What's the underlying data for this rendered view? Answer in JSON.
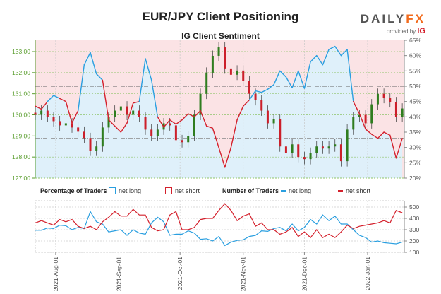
{
  "header": {
    "title": "EUR/JPY Client Positioning",
    "logo_main": "DAILY",
    "logo_accent": "FX",
    "provided_by": "provided by",
    "provider": "IG"
  },
  "colors": {
    "net_long": "#2a9fe0",
    "net_short": "#d4202c",
    "candle_up": "#2f7d1f",
    "candle_down": "#cc1f2a",
    "price_axis": "#5a9e2e",
    "fill_long": "#dff0fa",
    "fill_short": "#fbe3e5"
  },
  "legend": {
    "pct_title": "Percentage of Traders",
    "pct_long": "net long",
    "pct_short": "net short",
    "num_title": "Number of Traders",
    "num_long": "net long",
    "num_short": "net short"
  },
  "chart_data": [
    {
      "type": "candlestick",
      "title": "IG Client Sentiment",
      "dates": [
        "2021-07-22",
        "2021-07-25",
        "2021-07-28",
        "2021-07-31",
        "2021-08-03",
        "2021-08-06",
        "2021-08-09",
        "2021-08-12",
        "2021-08-15",
        "2021-08-18",
        "2021-08-21",
        "2021-08-24",
        "2021-08-27",
        "2021-08-30",
        "2021-09-02",
        "2021-09-05",
        "2021-09-08",
        "2021-09-11",
        "2021-09-14",
        "2021-09-17",
        "2021-09-20",
        "2021-09-23",
        "2021-09-26",
        "2021-09-29",
        "2021-10-02",
        "2021-10-05",
        "2021-10-08",
        "2021-10-11",
        "2021-10-14",
        "2021-10-17",
        "2021-10-20",
        "2021-10-23",
        "2021-10-26",
        "2021-10-29",
        "2021-11-01",
        "2021-11-04",
        "2021-11-07",
        "2021-11-10",
        "2021-11-13",
        "2021-11-16",
        "2021-11-19",
        "2021-11-22",
        "2021-11-25",
        "2021-11-28",
        "2021-12-01",
        "2021-12-04",
        "2021-12-07",
        "2021-12-10",
        "2021-12-13",
        "2021-12-16",
        "2021-12-19",
        "2021-12-22",
        "2021-12-25",
        "2021-12-28",
        "2021-12-31",
        "2022-01-03",
        "2022-01-06",
        "2022-01-09",
        "2022-01-12",
        "2022-01-15",
        "2022-01-18"
      ],
      "close": [
        130.0,
        130.2,
        129.9,
        129.7,
        129.5,
        129.6,
        129.4,
        129.2,
        128.9,
        128.3,
        128.5,
        129.4,
        129.9,
        130.2,
        130.4,
        130.0,
        130.2,
        129.9,
        129.3,
        129.0,
        129.3,
        129.6,
        129.5,
        128.8,
        128.7,
        129.0,
        130.0,
        131.0,
        132.0,
        132.8,
        133.2,
        132.2,
        131.9,
        132.1,
        131.6,
        131.0,
        130.7,
        130.2,
        129.6,
        129.8,
        128.5,
        128.2,
        128.6,
        128.0,
        127.9,
        128.2,
        128.5,
        128.4,
        128.5,
        128.6,
        127.8,
        129.3,
        129.9,
        130.0,
        129.6,
        130.5,
        131.0,
        130.8,
        130.6,
        129.9,
        130.3
      ],
      "net_long_pct": [
        43.5,
        42.5,
        45,
        47,
        46,
        45,
        38,
        42,
        57,
        61,
        54,
        52,
        39,
        37,
        35,
        38,
        44.5,
        45,
        59,
        52,
        40,
        36.6,
        39,
        37.6,
        39,
        41,
        40,
        42,
        37,
        36.3,
        30,
        23.5,
        30,
        39,
        43.5,
        45.5,
        48.5,
        48,
        49,
        50.5,
        55,
        53,
        49.5,
        55,
        49.3,
        58,
        60,
        57,
        62,
        63,
        60,
        62,
        45,
        41,
        36,
        34.3,
        33,
        35,
        34,
        26.5,
        33
      ],
      "price_axis": {
        "ticks": [
          "127.00",
          "128.00",
          "129.00",
          "130.00",
          "131.00",
          "132.00",
          "133.00"
        ],
        "range": [
          127,
          133.6
        ]
      },
      "pct_axis": {
        "ticks": [
          "20%",
          "25%",
          "30%",
          "35%",
          "40%",
          "45%",
          "50%",
          "55%",
          "60%",
          "65%"
        ],
        "range": [
          20,
          65
        ]
      },
      "reference_line_pct": 50,
      "grid": true
    },
    {
      "type": "line",
      "series": [
        {
          "name": "net long",
          "values": [
            295,
            295,
            315,
            310,
            340,
            335,
            300,
            320,
            310,
            460,
            370,
            350,
            280,
            290,
            300,
            250,
            300,
            270,
            260,
            360,
            410,
            370,
            250,
            260,
            260,
            290,
            270,
            215,
            220,
            200,
            240,
            160,
            190,
            205,
            210,
            240,
            250,
            290,
            285,
            310,
            320,
            290,
            350,
            290,
            320,
            390,
            350,
            430,
            380,
            420,
            350,
            350,
            300,
            250,
            230,
            190,
            200,
            185,
            180,
            175,
            190
          ]
        },
        {
          "name": "net short",
          "values": [
            360,
            380,
            360,
            340,
            390,
            370,
            390,
            330,
            310,
            330,
            300,
            370,
            410,
            460,
            420,
            420,
            480,
            430,
            430,
            320,
            290,
            300,
            430,
            460,
            300,
            300,
            320,
            390,
            400,
            400,
            470,
            530,
            470,
            380,
            420,
            440,
            330,
            360,
            300,
            300,
            260,
            280,
            320,
            240,
            280,
            230,
            300,
            230,
            260,
            230,
            280,
            340,
            310,
            330,
            340,
            350,
            360,
            380,
            360,
            470,
            450
          ]
        }
      ],
      "y_axis": {
        "ticks": [
          "100",
          "200",
          "300",
          "400",
          "500"
        ],
        "range": [
          100,
          550
        ]
      },
      "x_ticks": [
        "2021-Aug-01",
        "2021-Sep-01",
        "2021-Oct-01",
        "2021-Nov-01",
        "2021-Dec-01",
        "2022-Jan-01"
      ],
      "x_tick_dates": [
        "2021-08-01",
        "2021-09-01",
        "2021-10-01",
        "2021-11-01",
        "2021-12-01",
        "2022-01-01"
      ],
      "grid": true
    }
  ]
}
